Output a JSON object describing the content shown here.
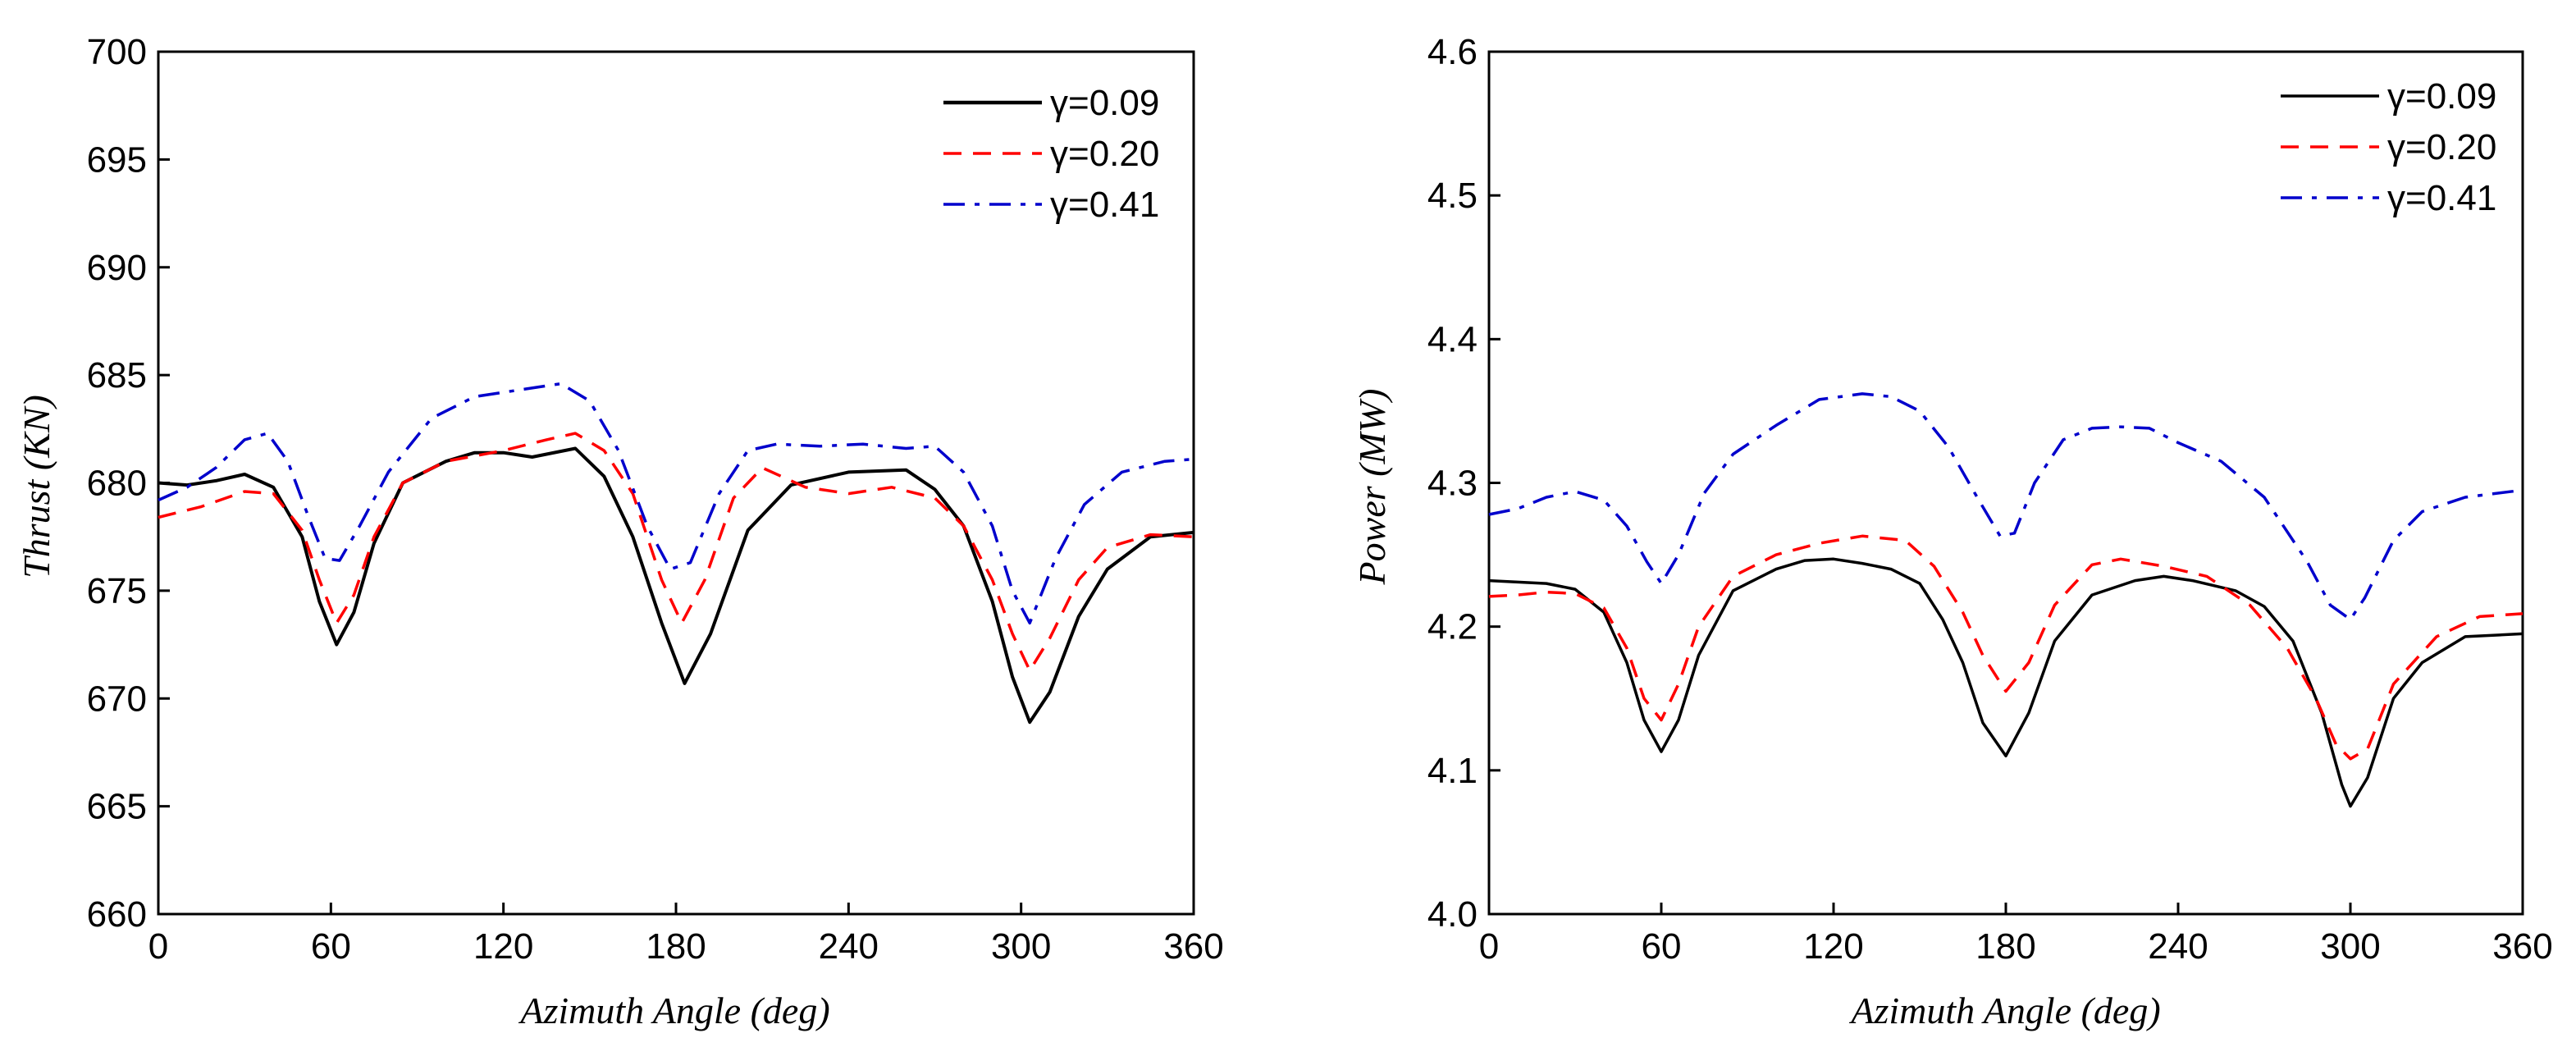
{
  "chart_data": [
    {
      "type": "line",
      "title": "",
      "xlabel": "Azimuth Angle (deg)",
      "ylabel": "Thrust (KN)",
      "xlim": [
        0,
        360
      ],
      "ylim": [
        660,
        700
      ],
      "xticks": [
        "0",
        "60",
        "120",
        "180",
        "240",
        "300",
        "360"
      ],
      "yticks": [
        "660",
        "665",
        "670",
        "675",
        "680",
        "685",
        "690",
        "695",
        "700"
      ],
      "legend_position": "top-right",
      "grid": false,
      "series": [
        {
          "name": "γ=0.09",
          "color": "#000000",
          "style": "solid",
          "x": [
            0,
            10,
            20,
            30,
            40,
            50,
            56,
            62,
            68,
            75,
            85,
            100,
            110,
            120,
            130,
            145,
            155,
            165,
            175,
            183,
            192,
            205,
            220,
            240,
            260,
            270,
            280,
            290,
            297,
            303,
            310,
            320,
            330,
            345,
            360
          ],
          "y": [
            680.0,
            679.9,
            680.1,
            680.4,
            679.8,
            677.5,
            674.5,
            672.5,
            674.0,
            677.2,
            680.0,
            681.0,
            681.4,
            681.4,
            681.2,
            681.6,
            680.3,
            677.5,
            673.5,
            670.7,
            673.0,
            677.8,
            679.9,
            680.5,
            680.6,
            679.7,
            678.0,
            674.5,
            671.0,
            668.9,
            670.3,
            673.8,
            676.0,
            677.5,
            677.7
          ]
        },
        {
          "name": "γ=0.20",
          "color": "#ff0000",
          "style": "dashed",
          "x": [
            0,
            15,
            30,
            40,
            50,
            56,
            62,
            68,
            75,
            85,
            100,
            120,
            135,
            145,
            155,
            165,
            175,
            182,
            190,
            200,
            210,
            225,
            240,
            255,
            270,
            280,
            290,
            297,
            303,
            310,
            320,
            330,
            345,
            360
          ],
          "y": [
            678.4,
            678.9,
            679.6,
            679.5,
            677.8,
            675.5,
            673.5,
            674.8,
            677.5,
            680.0,
            681.0,
            681.5,
            682.0,
            682.3,
            681.5,
            679.5,
            675.5,
            673.5,
            675.5,
            679.3,
            680.7,
            679.8,
            679.5,
            679.8,
            679.3,
            678.0,
            675.5,
            673.0,
            671.3,
            672.8,
            675.5,
            677.0,
            677.6,
            677.5
          ]
        },
        {
          "name": "γ=0.41",
          "color": "#0000cc",
          "style": "dashdot",
          "x": [
            0,
            10,
            20,
            30,
            38,
            45,
            52,
            58,
            63,
            70,
            80,
            95,
            110,
            125,
            140,
            150,
            160,
            170,
            178,
            185,
            195,
            205,
            215,
            230,
            245,
            260,
            270,
            280,
            290,
            297,
            303,
            312,
            322,
            335,
            350,
            360
          ],
          "y": [
            679.2,
            679.8,
            680.7,
            682.0,
            682.3,
            681.0,
            678.5,
            676.5,
            676.4,
            678.0,
            680.5,
            683.0,
            684.0,
            684.3,
            684.6,
            683.8,
            681.5,
            678.0,
            676.0,
            676.3,
            679.5,
            681.5,
            681.8,
            681.7,
            681.8,
            681.6,
            681.7,
            680.5,
            678.0,
            675.0,
            673.5,
            676.5,
            679.0,
            680.5,
            681.0,
            681.1
          ]
        }
      ]
    },
    {
      "type": "line",
      "title": "",
      "xlabel": "Azimuth Angle (deg)",
      "ylabel": "Power (MW)",
      "xlim": [
        0,
        360
      ],
      "ylim": [
        4.0,
        4.6
      ],
      "xticks": [
        "0",
        "60",
        "120",
        "180",
        "240",
        "300",
        "360"
      ],
      "yticks": [
        "4.0",
        "4.1",
        "4.2",
        "4.3",
        "4.4",
        "4.5",
        "4.6"
      ],
      "legend_position": "top-right",
      "grid": false,
      "series": [
        {
          "name": "γ=0.09",
          "color": "#000000",
          "style": "solid",
          "x": [
            0,
            10,
            20,
            30,
            40,
            48,
            54,
            60,
            66,
            73,
            85,
            100,
            110,
            120,
            130,
            140,
            150,
            158,
            165,
            172,
            180,
            188,
            197,
            210,
            225,
            235,
            245,
            260,
            270,
            280,
            290,
            297,
            300,
            306,
            315,
            325,
            340,
            360
          ],
          "y": [
            4.232,
            4.231,
            4.23,
            4.226,
            4.21,
            4.175,
            4.135,
            4.113,
            4.135,
            4.18,
            4.225,
            4.24,
            4.246,
            4.247,
            4.244,
            4.24,
            4.23,
            4.205,
            4.175,
            4.133,
            4.11,
            4.14,
            4.19,
            4.222,
            4.232,
            4.235,
            4.232,
            4.225,
            4.214,
            4.19,
            4.14,
            4.09,
            4.075,
            4.095,
            4.15,
            4.175,
            4.193,
            4.195
          ]
        },
        {
          "name": "γ=0.20",
          "color": "#ff0000",
          "style": "dashed",
          "x": [
            0,
            10,
            20,
            30,
            40,
            48,
            54,
            60,
            66,
            73,
            85,
            100,
            115,
            130,
            145,
            155,
            165,
            172,
            180,
            188,
            197,
            210,
            220,
            235,
            250,
            265,
            278,
            288,
            295,
            300,
            306,
            315,
            330,
            345,
            360
          ],
          "y": [
            4.221,
            4.222,
            4.224,
            4.223,
            4.213,
            4.185,
            4.15,
            4.135,
            4.16,
            4.2,
            4.235,
            4.25,
            4.258,
            4.263,
            4.26,
            4.242,
            4.21,
            4.18,
            4.155,
            4.175,
            4.215,
            4.243,
            4.247,
            4.242,
            4.235,
            4.215,
            4.185,
            4.15,
            4.118,
            4.108,
            4.115,
            4.16,
            4.193,
            4.207,
            4.209
          ]
        },
        {
          "name": "γ=0.41",
          "color": "#0000cc",
          "style": "dashdot",
          "x": [
            0,
            10,
            20,
            30,
            40,
            48,
            55,
            60,
            66,
            75,
            85,
            100,
            115,
            130,
            140,
            150,
            160,
            170,
            178,
            183,
            190,
            200,
            210,
            220,
            230,
            240,
            255,
            270,
            285,
            293,
            300,
            305,
            315,
            325,
            340,
            360
          ],
          "y": [
            4.278,
            4.282,
            4.29,
            4.294,
            4.288,
            4.27,
            4.245,
            4.23,
            4.25,
            4.293,
            4.32,
            4.34,
            4.358,
            4.362,
            4.36,
            4.35,
            4.325,
            4.29,
            4.263,
            4.265,
            4.3,
            4.33,
            4.338,
            4.339,
            4.338,
            4.328,
            4.315,
            4.29,
            4.245,
            4.215,
            4.205,
            4.22,
            4.26,
            4.28,
            4.29,
            4.295
          ]
        }
      ]
    }
  ]
}
